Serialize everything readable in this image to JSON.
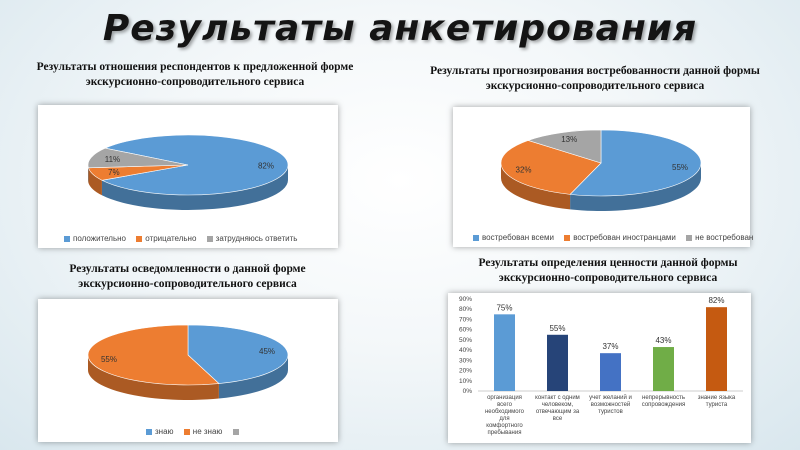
{
  "title": "Результаты анкетирования",
  "colors": {
    "blue": "#5b9bd5",
    "orange": "#ed7d31",
    "gray": "#a5a5a5",
    "navy": "#264478",
    "green": "#70ad47",
    "darkorange": "#c55a11"
  },
  "chart_data": [
    {
      "type": "pie",
      "title": "Результаты отношения респондентов к предложенной форме экскурсионно-сопроводительного сервиса",
      "categories": [
        "положительно",
        "отрицательно",
        "затрудняюсь ответить"
      ],
      "values": [
        82,
        7,
        11
      ],
      "labels": [
        "82%",
        "7%",
        "11%"
      ],
      "colors": [
        "#5b9bd5",
        "#ed7d31",
        "#a5a5a5"
      ],
      "legend": "bottom"
    },
    {
      "type": "pie",
      "title": "Результаты прогнозирования востребованности данной формы экскурсионно-сопроводительного сервиса",
      "categories": [
        "востребован всеми",
        "востребован иностранцами",
        "не востребован"
      ],
      "values": [
        55,
        32,
        13
      ],
      "labels": [
        "55%",
        "32%",
        "13%"
      ],
      "colors": [
        "#5b9bd5",
        "#ed7d31",
        "#a5a5a5"
      ],
      "legend": "bottom"
    },
    {
      "type": "pie",
      "title": "Результаты осведомленности о данной форме экскурсионно-сопроводительного сервиса",
      "categories": [
        "знаю",
        "не знаю",
        ""
      ],
      "values": [
        45,
        55,
        0
      ],
      "labels": [
        "45%",
        "55%",
        ""
      ],
      "colors": [
        "#5b9bd5",
        "#ed7d31",
        "#a5a5a5"
      ],
      "legend": "bottom"
    },
    {
      "type": "bar",
      "title": "Результаты определения ценности данной формы экскурсионно-сопроводительного сервиса",
      "categories": [
        [
          "организация",
          "всего",
          "необходимого",
          "для",
          "комфортного",
          "пребывания"
        ],
        [
          "контакт с одним",
          "человеком,",
          "отвечающим за",
          "все"
        ],
        [
          "учет желаний и",
          "возможностей",
          "туристов"
        ],
        [
          "непрерывность",
          "сопровождения"
        ],
        [
          "знание языка",
          "туриста"
        ]
      ],
      "values": [
        75,
        55,
        37,
        43,
        82
      ],
      "labels": [
        "75%",
        "55%",
        "37%",
        "43%",
        "82%"
      ],
      "colors": [
        "#5b9bd5",
        "#264478",
        "#4472c4",
        "#70ad47",
        "#c55a11"
      ],
      "yticks": [
        "0%",
        "10%",
        "20%",
        "30%",
        "40%",
        "50%",
        "60%",
        "70%",
        "80%",
        "90%"
      ],
      "ylim": [
        0,
        90
      ],
      "grid": false
    }
  ]
}
